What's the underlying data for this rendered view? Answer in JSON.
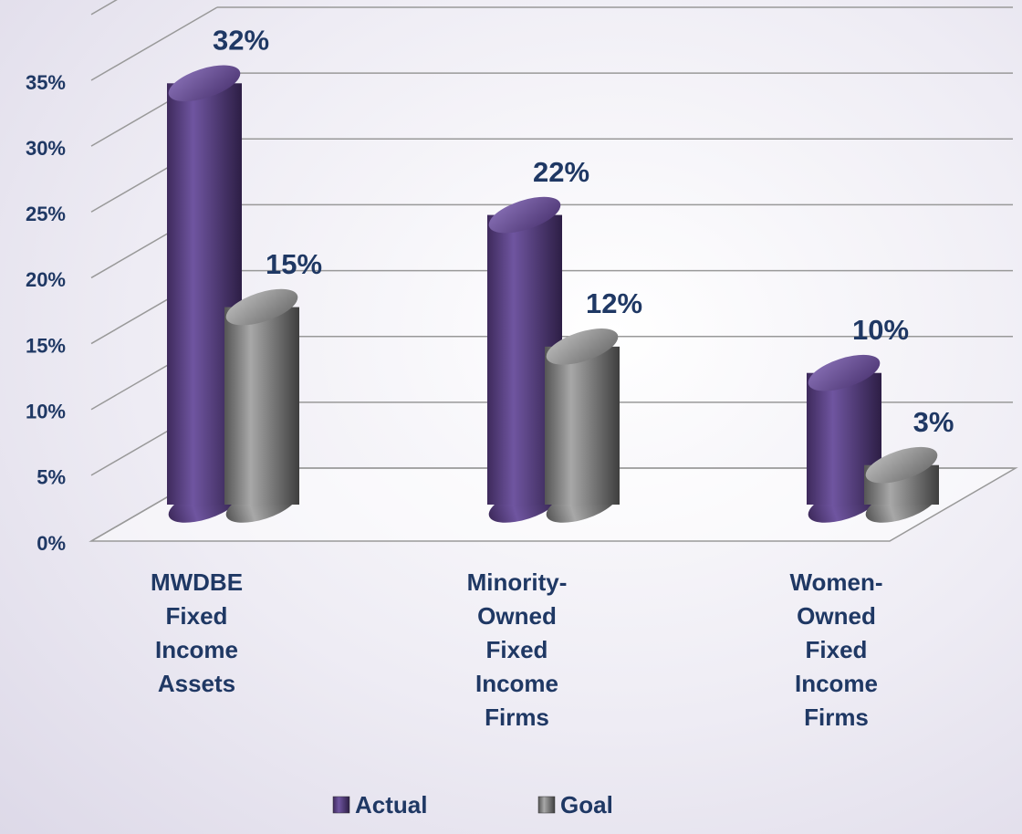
{
  "chart_data": {
    "type": "bar3d",
    "categories": [
      "MWDBE Fixed Income Assets",
      "Minority-Owned Fixed Income Firms",
      "Women-Owned Fixed Income Firms"
    ],
    "series": [
      {
        "name": "Actual",
        "color": "#5b3f82",
        "values": [
          32,
          22,
          10
        ],
        "value_labels": [
          "32%",
          "22%",
          "10%"
        ]
      },
      {
        "name": "Goal",
        "color": "#7f7f7f",
        "values": [
          15,
          12,
          3
        ],
        "value_labels": [
          "15%",
          "12%",
          "3%"
        ]
      }
    ],
    "ylim": [
      0,
      40
    ],
    "yticks": [
      {
        "value": 0,
        "label": "0%"
      },
      {
        "value": 5,
        "label": "5%"
      },
      {
        "value": 10,
        "label": "10%"
      },
      {
        "value": 15,
        "label": "15%"
      },
      {
        "value": 20,
        "label": "20%"
      },
      {
        "value": 25,
        "label": "25%"
      },
      {
        "value": 30,
        "label": "30%"
      },
      {
        "value": 35,
        "label": "35%"
      }
    ],
    "grid": true,
    "legend": "bottom"
  }
}
